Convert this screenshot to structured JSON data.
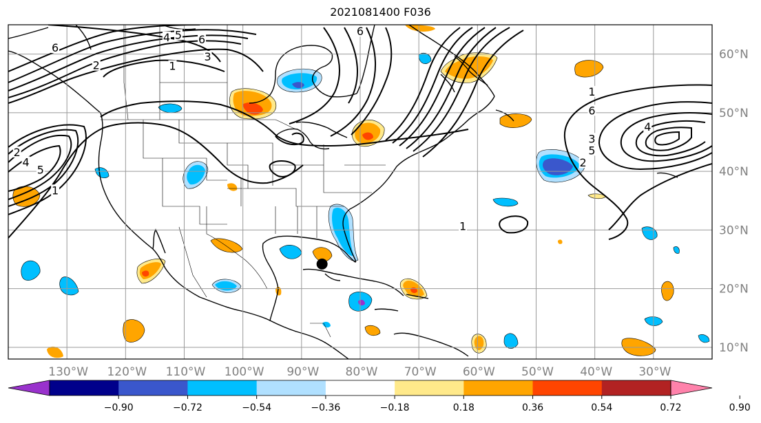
{
  "title": "2021081400 F036",
  "map": {
    "projection": "PlateCarree",
    "extent": {
      "lon_min": -140,
      "lon_max": -20,
      "lat_min": 8,
      "lat_max": 65
    },
    "lon_ticks": [
      {
        "lon": -130,
        "label": "130°W"
      },
      {
        "lon": -120,
        "label": "120°W"
      },
      {
        "lon": -110,
        "label": "110°W"
      },
      {
        "lon": -100,
        "label": "100°W"
      },
      {
        "lon": -90,
        "label": "90°W"
      },
      {
        "lon": -80,
        "label": "80°W"
      },
      {
        "lon": -70,
        "label": "70°W"
      },
      {
        "lon": -60,
        "label": "60°W"
      },
      {
        "lon": -50,
        "label": "50°W"
      },
      {
        "lon": -40,
        "label": "40°W"
      },
      {
        "lon": -30,
        "label": "30°W"
      }
    ],
    "lat_ticks": [
      {
        "lat": 60,
        "label": "60°N"
      },
      {
        "lat": 50,
        "label": "50°N"
      },
      {
        "lat": 40,
        "label": "40°N"
      },
      {
        "lat": 30,
        "label": "30°N"
      },
      {
        "lat": 20,
        "label": "20°N"
      },
      {
        "lat": 10,
        "label": "10°N"
      }
    ],
    "grid": true,
    "storm_marker": {
      "lon": -86.5,
      "lat": 24.2,
      "color": "#000000"
    }
  },
  "colorbar": {
    "orientation": "horizontal",
    "extend": "both",
    "colors": [
      "#9932cc",
      "#00008b",
      "#3a57cc",
      "#00bfff",
      "#b0e0ff",
      "#ffffff",
      "#ffe98a",
      "#ffa500",
      "#ff4500",
      "#b22222",
      "#ff82ab"
    ],
    "tick_labels": [
      "−0.90",
      "−0.72",
      "−0.54",
      "−0.36",
      "−0.18",
      "0.18",
      "0.36",
      "0.54",
      "0.72",
      "0.90"
    ]
  },
  "contour_labels": [
    {
      "text": "6",
      "lon": -132,
      "lat": 61
    },
    {
      "text": "4",
      "lon": -113,
      "lat": 62.8
    },
    {
      "text": "5",
      "lon": -111,
      "lat": 63.2
    },
    {
      "text": "6",
      "lon": -107,
      "lat": 62.4
    },
    {
      "text": "3",
      "lon": -106,
      "lat": 59.5
    },
    {
      "text": "1",
      "lon": -112,
      "lat": 57.9
    },
    {
      "text": "2",
      "lon": -125,
      "lat": 58
    },
    {
      "text": "6",
      "lon": -80,
      "lat": 63.8
    },
    {
      "text": "1",
      "lon": -40.5,
      "lat": 53.5
    },
    {
      "text": "6",
      "lon": -40.5,
      "lat": 50.3
    },
    {
      "text": "4",
      "lon": -31,
      "lat": 47.5
    },
    {
      "text": "3",
      "lon": -40.5,
      "lat": 45.5
    },
    {
      "text": "5",
      "lon": -40.5,
      "lat": 43.5
    },
    {
      "text": "2",
      "lon": -42,
      "lat": 41.4
    },
    {
      "text": "1",
      "lon": -62.5,
      "lat": 30.6
    },
    {
      "text": "2",
      "lon": -138.5,
      "lat": 43.2
    },
    {
      "text": "4",
      "lon": -137,
      "lat": 41.5
    },
    {
      "text": "5",
      "lon": -134.5,
      "lat": 40.2
    },
    {
      "text": "1",
      "lon": -132,
      "lat": 36.7
    }
  ]
}
